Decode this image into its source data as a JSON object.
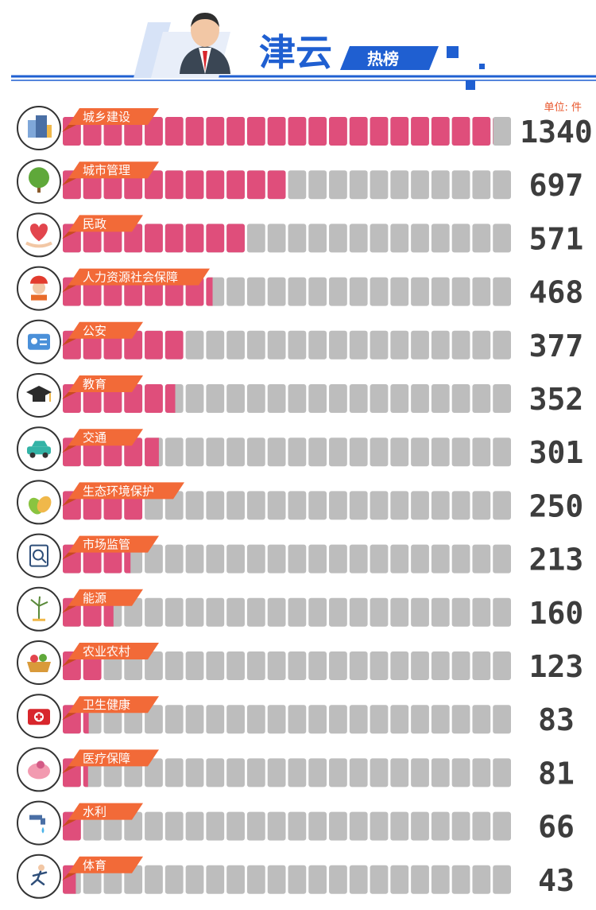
{
  "header": {
    "title": "津云",
    "badge": "热榜",
    "unit": "单位: 件"
  },
  "colors": {
    "bar_fill": "#df4e7b",
    "bar_empty": "#bdbdbd",
    "label_tab": "#f26a38",
    "header_blue": "#1f5fd1",
    "number": "#3d3d3d"
  },
  "chart_data": {
    "type": "bar",
    "orientation": "horizontal",
    "categories": [
      "城乡建设",
      "城市管理",
      "民政",
      "人力资源社会保障",
      "公安",
      "教育",
      "交通",
      "生态环境保护",
      "市场监管",
      "能源",
      "农业农村",
      "卫生健康",
      "医疗保障",
      "水利",
      "体育"
    ],
    "values": [
      1340,
      697,
      571,
      468,
      377,
      352,
      301,
      250,
      213,
      160,
      123,
      83,
      81,
      66,
      43
    ],
    "icons": [
      "buildings-icon",
      "tree-icon",
      "heart-hands-icon",
      "worker-helmet-icon",
      "police-id-card-icon",
      "graduation-cap-icon",
      "car-icon",
      "leaves-icon",
      "clipboard-magnifier-icon",
      "wind-turbine-icon",
      "vegetable-basket-icon",
      "first-aid-kit-icon",
      "medical-insurance-hands-icon",
      "water-tap-icon",
      "runner-icon"
    ],
    "xlim": [
      0,
      1400
    ],
    "grid": false,
    "legend": "none"
  }
}
